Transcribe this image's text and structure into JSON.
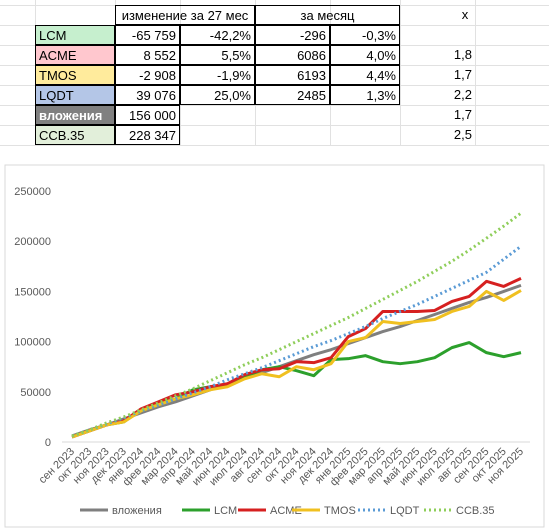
{
  "table": {
    "header": [
      "изменение за 27 мес",
      "за месяц",
      "x"
    ],
    "rows": [
      {
        "label": "LCM",
        "color": "#c6efce",
        "change": "-65 759",
        "change_pct": "-42,2%",
        "month": "-296",
        "month_pct": "-0,3%"
      },
      {
        "label": "ACME",
        "color": "#ffc7ce",
        "change": "8 552",
        "change_pct": "5,5%",
        "month": "6086",
        "month_pct": "4,0%",
        "x": "1,8"
      },
      {
        "label": "TMOS",
        "color": "#ffeb9c",
        "change": "-2 908",
        "change_pct": "-1,9%",
        "month": "6193",
        "month_pct": "4,4%",
        "x": "1,7"
      },
      {
        "label": "LQDT",
        "color": "#b4c6e7",
        "change": "39 076",
        "change_pct": "25,0%",
        "month": "2485",
        "month_pct": "1,3%",
        "x": "2,2"
      },
      {
        "label": "вложения",
        "color": "#808080",
        "change": "156 000",
        "x": "1,7"
      },
      {
        "label": "ССВ.35",
        "color": "#e2efda",
        "change": "228 347",
        "x": "2,5"
      }
    ]
  },
  "chart_data": {
    "type": "line",
    "categories": [
      "сен 2023",
      "окт 2023",
      "ноя 2023",
      "дек 2023",
      "янв 2024",
      "фев 2024",
      "мар 2024",
      "апр 2024",
      "май 2024",
      "июн 2024",
      "июл 2024",
      "авг 2024",
      "сен 2024",
      "окт 2024",
      "ноя 2024",
      "дек 2024",
      "янв 2025",
      "фев 2025",
      "мар 2025",
      "апр 2025",
      "май 2025",
      "июн 2025",
      "июл 2025",
      "авг 2025",
      "сен 2025",
      "окт 2025",
      "ноя 2025"
    ],
    "ylim": [
      0,
      250000
    ],
    "yticks": [
      0,
      50000,
      100000,
      150000,
      200000,
      250000
    ],
    "grid": false,
    "series": [
      {
        "name": "вложения",
        "color": "#7f7f7f",
        "dash": "solid",
        "values": [
          6000,
          12000,
          17000,
          23000,
          29000,
          35000,
          40000,
          46000,
          52000,
          58000,
          64000,
          69000,
          75000,
          81000,
          87000,
          92000,
          98000,
          104000,
          110000,
          115000,
          121000,
          127000,
          133000,
          139000,
          144000,
          150000,
          156000
        ]
      },
      {
        "name": "LCM",
        "color": "#2ca02c",
        "dash": "solid",
        "values": [
          5000,
          11000,
          17000,
          20000,
          32000,
          38000,
          43000,
          52000,
          55000,
          57000,
          65000,
          72000,
          75000,
          71000,
          66000,
          82000,
          83000,
          86000,
          80000,
          78000,
          80000,
          84000,
          94000,
          99000,
          89000,
          85000,
          89000
        ]
      },
      {
        "name": "ACME",
        "color": "#d62020",
        "dash": "solid",
        "values": [
          5000,
          11000,
          17000,
          21000,
          33000,
          40000,
          47000,
          50000,
          55000,
          58000,
          67000,
          72000,
          73000,
          80000,
          79000,
          84000,
          105000,
          113000,
          130000,
          130000,
          130000,
          131000,
          140000,
          145000,
          160000,
          155000,
          163000
        ]
      },
      {
        "name": "TMOS",
        "color": "#f0c020",
        "dash": "solid",
        "values": [
          5000,
          11000,
          17000,
          20000,
          31000,
          37000,
          43000,
          47000,
          52000,
          55000,
          63000,
          68000,
          65000,
          75000,
          72000,
          78000,
          100000,
          104000,
          120000,
          118000,
          120000,
          122000,
          130000,
          135000,
          150000,
          141000,
          151000
        ]
      },
      {
        "name": "LQDT",
        "color": "#5b9bd5",
        "dash": "dotted",
        "values": [
          6000,
          12000,
          18000,
          24000,
          31000,
          37000,
          43000,
          49000,
          55000,
          62000,
          68000,
          74000,
          81000,
          88000,
          95000,
          101000,
          108000,
          115000,
          123000,
          130000,
          137000,
          145000,
          153000,
          161000,
          169000,
          182000,
          195000
        ]
      },
      {
        "name": "ССВ.35",
        "color": "#8fce5a",
        "dash": "dotted",
        "values": [
          6000,
          12000,
          19000,
          25000,
          32000,
          39000,
          46000,
          53000,
          61000,
          69000,
          77000,
          84000,
          92000,
          100000,
          108000,
          116000,
          124000,
          133000,
          142000,
          151000,
          160000,
          170000,
          180000,
          191000,
          203000,
          215000,
          228000
        ]
      }
    ]
  }
}
